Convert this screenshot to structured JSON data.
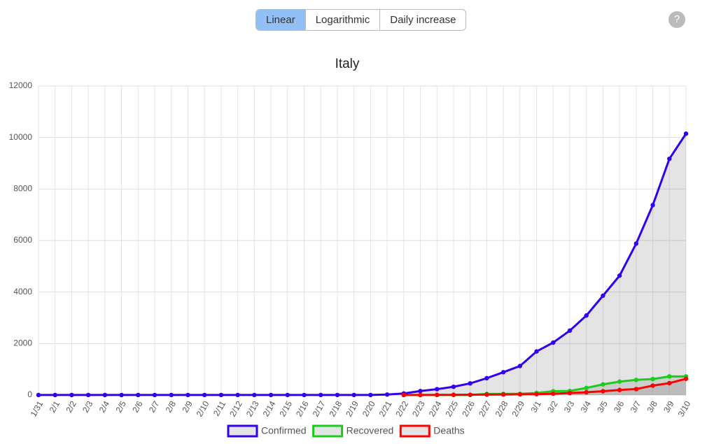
{
  "toolbar": {
    "buttons": [
      "Linear",
      "Logarithmic",
      "Daily increase"
    ],
    "active": 0,
    "help": "?"
  },
  "chart_data": {
    "type": "line",
    "title": "Italy",
    "categories": [
      "1/31",
      "2/1",
      "2/2",
      "2/3",
      "2/4",
      "2/5",
      "2/6",
      "2/7",
      "2/8",
      "2/9",
      "2/10",
      "2/11",
      "2/12",
      "2/13",
      "2/14",
      "2/15",
      "2/16",
      "2/17",
      "2/18",
      "2/19",
      "2/20",
      "2/21",
      "2/22",
      "2/23",
      "2/24",
      "2/25",
      "2/26",
      "2/27",
      "2/28",
      "2/29",
      "3/1",
      "3/2",
      "3/3",
      "3/4",
      "3/5",
      "3/6",
      "3/7",
      "3/8",
      "3/9",
      "3/10"
    ],
    "series": [
      {
        "name": "Confirmed",
        "color": "#3300ee",
        "values": [
          2,
          2,
          2,
          2,
          2,
          2,
          2,
          3,
          3,
          3,
          3,
          3,
          3,
          3,
          3,
          3,
          3,
          3,
          3,
          3,
          3,
          20,
          62,
          155,
          229,
          322,
          453,
          655,
          888,
          1128,
          1694,
          2036,
          2502,
          3089,
          3858,
          4636,
          5883,
          7375,
          9172,
          10149
        ]
      },
      {
        "name": "Recovered",
        "color": "#1ccc1c",
        "values": [
          null,
          null,
          null,
          null,
          null,
          null,
          null,
          null,
          null,
          null,
          null,
          null,
          null,
          null,
          null,
          null,
          null,
          null,
          null,
          null,
          null,
          null,
          1,
          2,
          1,
          1,
          3,
          45,
          46,
          46,
          83,
          149,
          160,
          276,
          414,
          523,
          589,
          622,
          724,
          724
        ]
      },
      {
        "name": "Deaths",
        "color": "#ff0000",
        "values": [
          null,
          null,
          null,
          null,
          null,
          null,
          null,
          null,
          null,
          null,
          null,
          null,
          null,
          null,
          null,
          null,
          null,
          null,
          null,
          null,
          null,
          null,
          2,
          3,
          7,
          10,
          12,
          17,
          21,
          29,
          34,
          52,
          79,
          107,
          148,
          197,
          233,
          366,
          463,
          631
        ]
      }
    ],
    "ylim": [
      0,
      12000
    ],
    "yticks": [
      0,
      2000,
      4000,
      6000,
      8000,
      10000,
      12000
    ],
    "grid": true
  }
}
